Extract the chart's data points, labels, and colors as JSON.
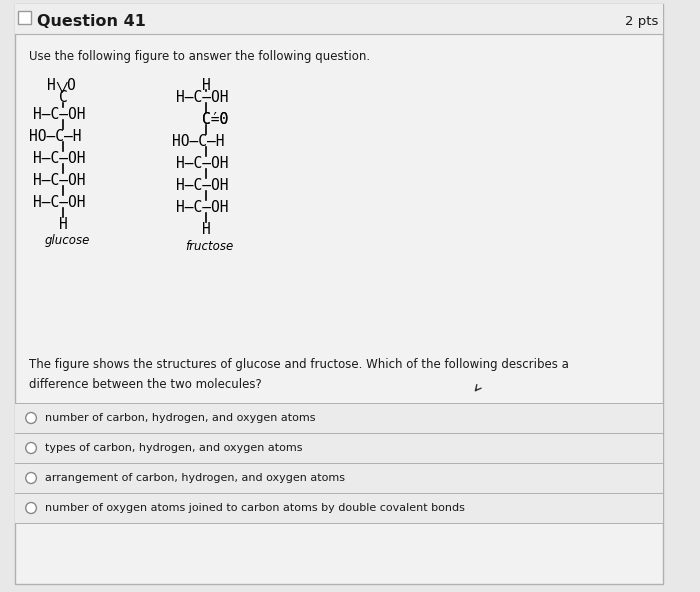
{
  "title": "Question 41",
  "pts": "2 pts",
  "subtitle": "Use the following figure to answer the following question.",
  "question_text": "The figure shows the structures of glucose and fructose. Which of the following describes a\ndifference between the two molecules?",
  "glucose_label": "glucose",
  "fructose_label": "fructose",
  "options": [
    "number of carbon, hydrogen, and oxygen atoms",
    "types of carbon, hydrogen, and oxygen atoms",
    "arrangement of carbon, hydrogen, and oxygen atoms",
    "number of oxygen atoms joined to carbon atoms by double covalent bonds"
  ],
  "bg_color": "#e8e8e8",
  "box_color": "#f2f2f2",
  "inner_box_color": "#f2f2f2",
  "header_color": "#f2f2f2",
  "text_color": "#1a1a1a",
  "border_color": "#b0b0b0",
  "option_bg": "#ebebeb",
  "font_size_title": 11.5,
  "font_size_pts": 9.5,
  "font_size_subtitle": 8.5,
  "font_size_question": 8.5,
  "font_size_option": 8.0,
  "font_size_chem": 10.5,
  "font_size_label": 8.5
}
